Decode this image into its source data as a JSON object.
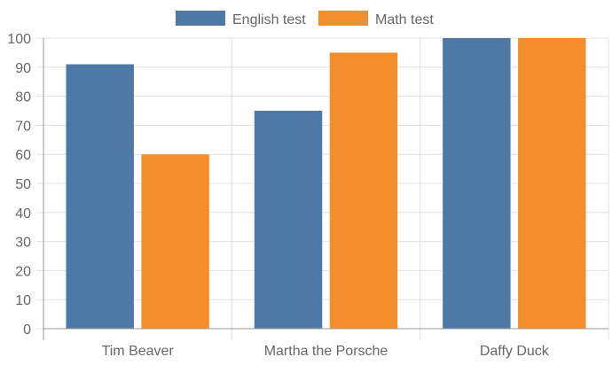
{
  "chart_data": {
    "type": "bar",
    "categories": [
      "Tim Beaver",
      "Martha the Porsche",
      "Daffy Duck"
    ],
    "series": [
      {
        "name": "English test",
        "values": [
          91,
          75,
          100
        ],
        "color": "#4e79a7"
      },
      {
        "name": "Math test",
        "values": [
          60,
          95,
          100
        ],
        "color": "#f28e2b"
      }
    ],
    "ylim": [
      0,
      100
    ],
    "yticks": [
      0,
      10,
      20,
      30,
      40,
      50,
      60,
      70,
      80,
      90,
      100
    ],
    "title": "",
    "xlabel": "",
    "ylabel": "",
    "grid": true,
    "legend_position": "top-center"
  },
  "colors": {
    "grid": "#e0e0e0",
    "axis": "#999999",
    "text": "#666666"
  }
}
